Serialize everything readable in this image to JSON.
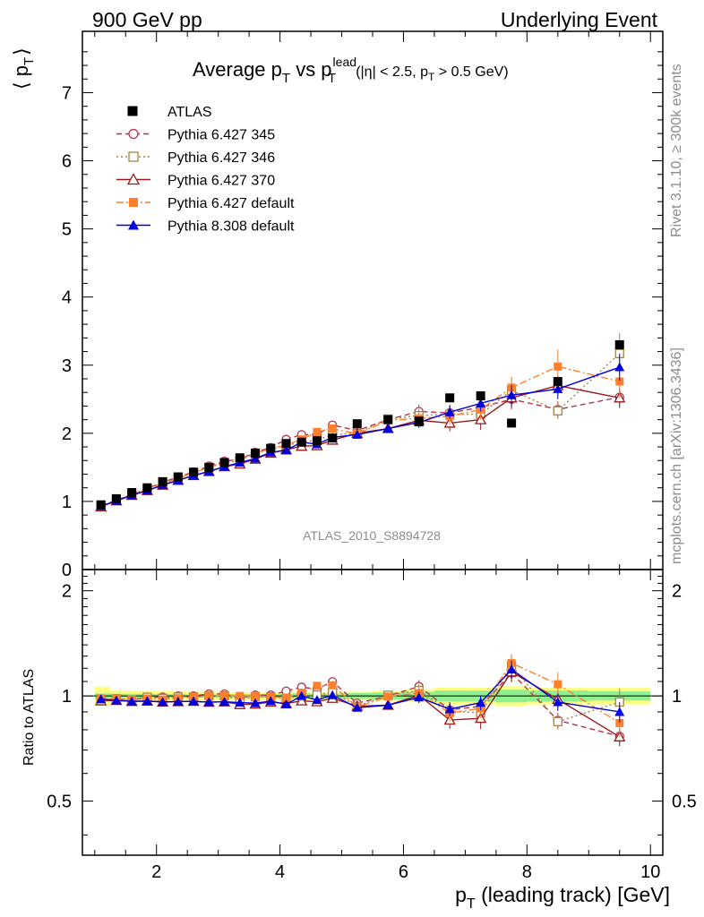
{
  "header": {
    "left": "900 GeV pp",
    "right": "Underlying Event"
  },
  "side_text": {
    "rivet": "Rivet 3.1.10, ≥ 300k events",
    "mcplots": "mcplots.cern.ch [arXiv:1306.3436]"
  },
  "chart_data": {
    "type": "scatter",
    "title": {
      "main": "Average p",
      "sub1": "T",
      "mid": " vs p",
      "sup": "lead",
      "sub2": "T",
      "cut": "(|η| < 2.5, p",
      "cut_sub": "T",
      "cut_end": " > 0.5 GeV)"
    },
    "analysis_label": "ATLAS_2010_S8894728",
    "ylabel": "⟨ p",
    "ylabel_sub": "T",
    "ylabel_end": "⟩",
    "ratio_ylabel": "Ratio to ATLAS",
    "xlabel": "p",
    "xlabel_sub": "T",
    "xlabel_end": " (leading track) [GeV]",
    "xlim": [
      0.8,
      10.2
    ],
    "ylim": [
      0,
      7.9
    ],
    "ratio_ylim": [
      0.35,
      2.3
    ],
    "x_ticks": [
      2,
      4,
      6,
      8,
      10
    ],
    "y_ticks": [
      0,
      1,
      2,
      3,
      4,
      5,
      6,
      7
    ],
    "ratio_ticks_labeled": [
      0.5,
      1,
      2
    ],
    "legend_position": "top-left",
    "x": [
      1.1,
      1.35,
      1.6,
      1.85,
      2.1,
      2.35,
      2.6,
      2.85,
      3.1,
      3.35,
      3.6,
      3.85,
      4.1,
      4.35,
      4.6,
      4.85,
      5.25,
      5.75,
      6.25,
      6.75,
      7.25,
      7.75,
      8.5,
      9.5
    ],
    "bin_edges": [
      1.0,
      1.25,
      1.5,
      1.75,
      2.0,
      2.25,
      2.5,
      2.75,
      3.0,
      3.25,
      3.5,
      3.75,
      4.0,
      4.25,
      4.5,
      4.75,
      5.0,
      5.5,
      6.0,
      6.5,
      7.0,
      7.5,
      8.0,
      9.0,
      10.0
    ],
    "data": {
      "name": "ATLAS",
      "color": "#000000",
      "values": [
        0.95,
        1.04,
        1.13,
        1.2,
        1.29,
        1.36,
        1.43,
        1.5,
        1.57,
        1.64,
        1.71,
        1.78,
        1.85,
        1.87,
        1.89,
        1.93,
        2.14,
        2.2,
        2.18,
        2.52,
        2.55,
        2.15,
        2.76,
        3.3
      ],
      "band_stat": [
        0.015,
        0.015,
        0.015,
        0.015,
        0.015,
        0.015,
        0.015,
        0.015,
        0.02,
        0.02,
        0.02,
        0.02,
        0.03,
        0.03,
        0.03,
        0.03,
        0.04,
        0.05,
        0.06,
        0.09,
        0.09,
        0.09,
        0.1,
        0.1
      ],
      "band_total": [
        0.06,
        0.04,
        0.04,
        0.04,
        0.04,
        0.04,
        0.04,
        0.04,
        0.04,
        0.04,
        0.04,
        0.04,
        0.05,
        0.05,
        0.05,
        0.05,
        0.06,
        0.07,
        0.09,
        0.14,
        0.14,
        0.14,
        0.15,
        0.18
      ]
    },
    "series": [
      {
        "name": "Pythia 6.427 345",
        "color": "#b2334d",
        "marker": "open-circle",
        "dash": "6,4",
        "values": [
          0.93,
          1.02,
          1.1,
          1.19,
          1.28,
          1.36,
          1.43,
          1.52,
          1.59,
          1.62,
          1.72,
          1.79,
          1.91,
          1.98,
          1.98,
          2.12,
          2.04,
          2.2,
          2.32,
          2.3,
          2.38,
          2.5,
          2.35,
          2.53
        ],
        "err": [
          0.01,
          0.01,
          0.01,
          0.01,
          0.01,
          0.01,
          0.01,
          0.01,
          0.02,
          0.02,
          0.02,
          0.02,
          0.03,
          0.03,
          0.03,
          0.04,
          0.04,
          0.06,
          0.1,
          0.12,
          0.15,
          0.15,
          0.12,
          0.12
        ]
      },
      {
        "name": "Pythia 6.427 346",
        "color": "#a8824a",
        "marker": "open-square",
        "dash": "2,3",
        "values": [
          0.93,
          1.02,
          1.1,
          1.19,
          1.27,
          1.35,
          1.42,
          1.5,
          1.57,
          1.6,
          1.7,
          1.77,
          1.82,
          1.87,
          1.9,
          1.98,
          2.0,
          2.21,
          2.26,
          2.28,
          2.28,
          2.63,
          2.33,
          3.17
        ],
        "err": [
          0.01,
          0.01,
          0.01,
          0.01,
          0.01,
          0.01,
          0.01,
          0.01,
          0.02,
          0.02,
          0.02,
          0.02,
          0.03,
          0.03,
          0.03,
          0.04,
          0.04,
          0.06,
          0.1,
          0.12,
          0.15,
          0.2,
          0.12,
          0.3
        ]
      },
      {
        "name": "Pythia 6.427 370",
        "color": "#991a1a",
        "marker": "open-triangle",
        "dash": "",
        "values": [
          0.92,
          1.01,
          1.09,
          1.16,
          1.24,
          1.31,
          1.38,
          1.44,
          1.51,
          1.55,
          1.62,
          1.71,
          1.76,
          1.81,
          1.82,
          1.9,
          2.0,
          2.07,
          2.19,
          2.15,
          2.2,
          2.52,
          2.7,
          2.52
        ],
        "err": [
          0.01,
          0.01,
          0.01,
          0.01,
          0.01,
          0.01,
          0.01,
          0.01,
          0.02,
          0.02,
          0.02,
          0.02,
          0.03,
          0.03,
          0.03,
          0.04,
          0.04,
          0.06,
          0.1,
          0.12,
          0.15,
          0.15,
          0.15,
          0.15
        ]
      },
      {
        "name": "Pythia 6.427 default",
        "color": "#ff7f2a",
        "marker": "filled-square",
        "dash": "8,3,2,3",
        "values": [
          0.93,
          1.02,
          1.1,
          1.18,
          1.26,
          1.34,
          1.42,
          1.5,
          1.57,
          1.64,
          1.71,
          1.77,
          1.83,
          1.91,
          2.02,
          2.07,
          1.99,
          2.19,
          2.22,
          2.25,
          2.35,
          2.67,
          2.98,
          2.76
        ],
        "err": [
          0.01,
          0.01,
          0.01,
          0.01,
          0.01,
          0.01,
          0.01,
          0.01,
          0.02,
          0.02,
          0.02,
          0.02,
          0.03,
          0.03,
          0.03,
          0.04,
          0.04,
          0.06,
          0.1,
          0.12,
          0.15,
          0.15,
          0.25,
          0.25
        ]
      },
      {
        "name": "Pythia 8.308 default",
        "color": "#0000dd",
        "marker": "filled-triangle",
        "dash": "",
        "values": [
          0.93,
          1.01,
          1.09,
          1.16,
          1.24,
          1.31,
          1.38,
          1.44,
          1.51,
          1.57,
          1.63,
          1.72,
          1.75,
          1.87,
          1.84,
          1.94,
          1.98,
          2.07,
          2.16,
          2.31,
          2.44,
          2.56,
          2.65,
          2.97
        ],
        "err": [
          0.01,
          0.01,
          0.01,
          0.01,
          0.01,
          0.01,
          0.01,
          0.01,
          0.02,
          0.02,
          0.02,
          0.02,
          0.03,
          0.03,
          0.03,
          0.04,
          0.04,
          0.06,
          0.08,
          0.1,
          0.12,
          0.15,
          0.15,
          0.2
        ]
      }
    ]
  }
}
